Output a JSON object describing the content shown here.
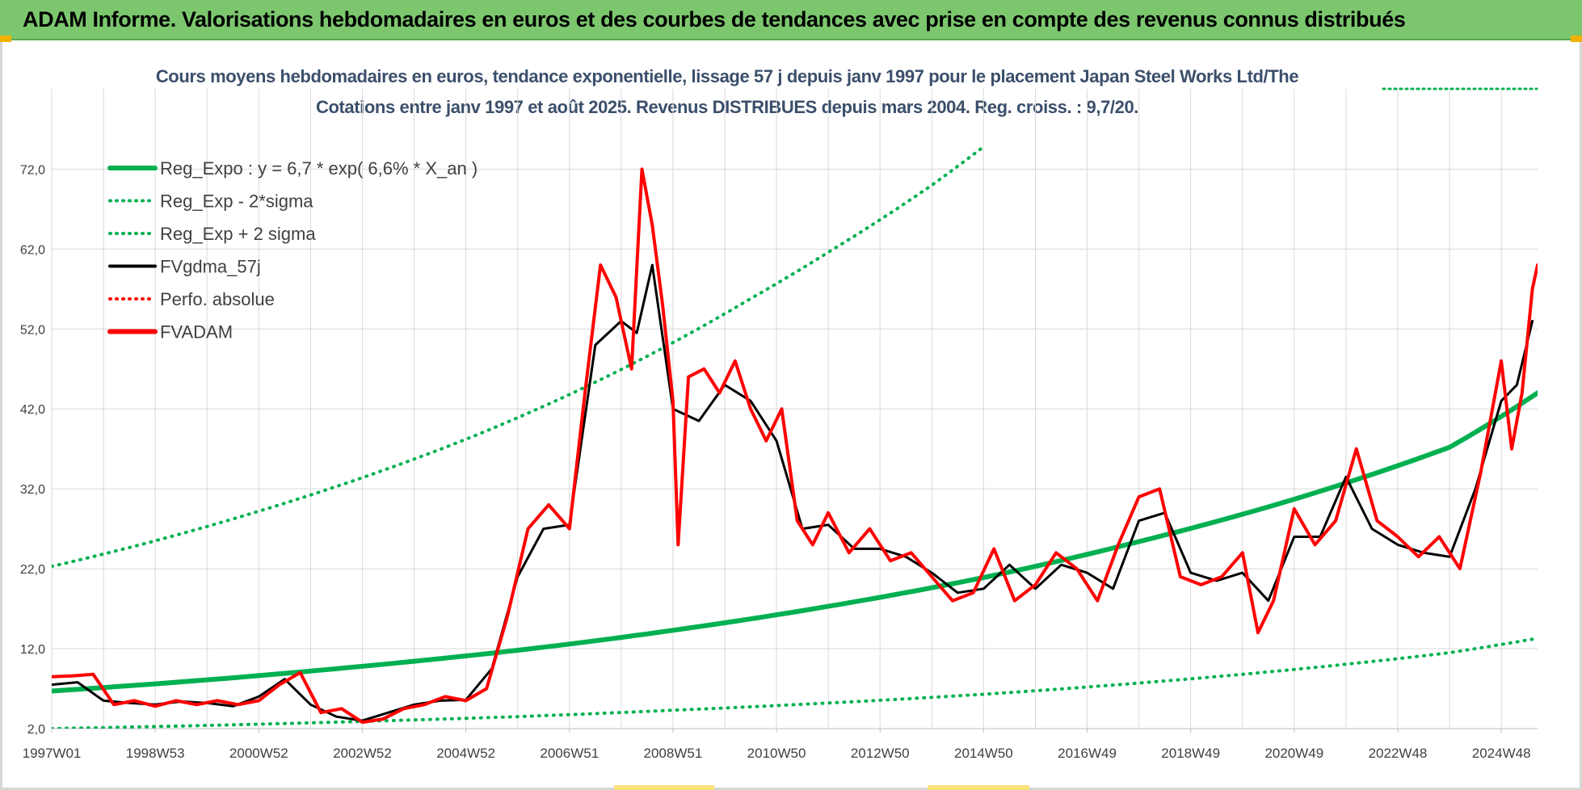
{
  "header": {
    "title": "ADAM Informe. Valorisations hebdomadaires en euros et des courbes de tendances avec prise en compte des revenus connus distribués"
  },
  "colors": {
    "header_bg": "#7cc76e",
    "trend": "#00b050",
    "fvgdma": "#000000",
    "fvadam": "#ff0000",
    "grid": "#d9d9d9",
    "title_text": "#3b4f6b"
  },
  "chart_data": {
    "type": "line",
    "title": "Cours moyens hebdomadaires en euros, tendance exponentielle, lissage 57 j depuis janv 1997 pour le placement Japan Steel Works Ltd/The",
    "subtitle": "Cotations entre janv 1997 et août 2025. Revenus DISTRIBUES depuis mars 2004. Reg. croiss. : 9,7/20.",
    "xlabel": "",
    "ylabel": "",
    "ylim": [
      2,
      78
    ],
    "xlim": [
      1997.0,
      2025.7
    ],
    "yticks": [
      2,
      12,
      22,
      32,
      42,
      52,
      62,
      72
    ],
    "ytick_labels": [
      "2,0",
      "12,0",
      "22,0",
      "32,0",
      "42,0",
      "52,0",
      "62,0",
      "72,0"
    ],
    "xticks": [
      {
        "label": "1997W01",
        "x": 1997.0
      },
      {
        "label": "1998W53",
        "x": 1999.0
      },
      {
        "label": "2000W52",
        "x": 2001.0
      },
      {
        "label": "2002W52",
        "x": 2003.0
      },
      {
        "label": "2004W52",
        "x": 2005.0
      },
      {
        "label": "2006W51",
        "x": 2007.0
      },
      {
        "label": "2008W51",
        "x": 2009.0
      },
      {
        "label": "2010W50",
        "x": 2011.0
      },
      {
        "label": "2012W50",
        "x": 2013.0
      },
      {
        "label": "2014W50",
        "x": 2015.0
      },
      {
        "label": "2016W49",
        "x": 2017.0
      },
      {
        "label": "2018W49",
        "x": 2019.0
      },
      {
        "label": "2020W49",
        "x": 2021.0
      },
      {
        "label": "2022W48",
        "x": 2023.0
      },
      {
        "label": "2024W48",
        "x": 2025.0
      }
    ],
    "grid": true,
    "legend_position": "top-left",
    "legend": [
      {
        "label": "Reg_Expo : y = 6,7 * exp( 6,6% *  X_an )",
        "color": "#00b050",
        "style": "solid-thick"
      },
      {
        "label": "Reg_Exp - 2*sigma",
        "color": "#00b050",
        "style": "dotted"
      },
      {
        "label": "Reg_Exp + 2 sigma",
        "color": "#00b050",
        "style": "dotted"
      },
      {
        "label": "FVgdma_57j",
        "color": "#000000",
        "style": "solid"
      },
      {
        "label": "Perfo. absolue",
        "color": "#ff0000",
        "style": "dotted"
      },
      {
        "label": "FVADAM",
        "color": "#ff0000",
        "style": "solid-thick"
      }
    ],
    "series": [
      {
        "name": "Reg_Expo : y = 6,7 * exp( 6,6% *  X_an )",
        "x": [
          1997.0,
          2000.0,
          2003.0,
          2006.0,
          2009.0,
          2012.0,
          2015.0,
          2018.0,
          2021.0,
          2024.0,
          2025.7
        ],
        "values": [
          6.7,
          8.1,
          9.8,
          11.8,
          14.3,
          17.3,
          20.9,
          25.4,
          30.7,
          37.2,
          44.0
        ]
      },
      {
        "name": "Reg_Exp - 2*sigma",
        "x": [
          1997.0,
          2000.0,
          2003.0,
          2006.0,
          2009.0,
          2012.0,
          2015.0,
          2018.0,
          2021.0,
          2024.0,
          2025.7
        ],
        "values": [
          2.0,
          2.4,
          2.9,
          3.5,
          4.3,
          5.2,
          6.3,
          7.7,
          9.4,
          11.5,
          13.3
        ]
      },
      {
        "name": "Reg_Exp + 2 sigma",
        "x": [
          1997.0,
          1999.0,
          2001.0,
          2003.0,
          2005.0,
          2007.0,
          2009.0,
          2010.5,
          2012.0,
          2014.0,
          2015.0
        ],
        "values": [
          22.3,
          25.5,
          29.2,
          33.4,
          38.2,
          43.8,
          50.3,
          55.8,
          61.6,
          70.0,
          74.8
        ]
      },
      {
        "name": "FVgdma_57j",
        "x": [
          1997.0,
          1997.5,
          1998.0,
          1998.5,
          1999.0,
          1999.5,
          2000.0,
          2000.5,
          2001.0,
          2001.5,
          2002.0,
          2002.5,
          2003.0,
          2003.5,
          2004.0,
          2004.5,
          2005.0,
          2005.5,
          2006.0,
          2006.5,
          2007.0,
          2007.5,
          2008.0,
          2008.3,
          2008.6,
          2009.0,
          2009.5,
          2010.0,
          2010.5,
          2011.0,
          2011.5,
          2012.0,
          2012.5,
          2013.0,
          2013.5,
          2014.0,
          2014.5,
          2015.0,
          2015.5,
          2016.0,
          2016.5,
          2017.0,
          2017.5,
          2018.0,
          2018.5,
          2019.0,
          2019.5,
          2020.0,
          2020.5,
          2021.0,
          2021.5,
          2022.0,
          2022.5,
          2023.0,
          2023.5,
          2024.0,
          2024.5,
          2025.0,
          2025.3,
          2025.6
        ],
        "values": [
          7.5,
          7.8,
          5.5,
          5.2,
          5.0,
          5.4,
          5.2,
          4.8,
          6.0,
          8.2,
          5.0,
          3.5,
          3.0,
          4.0,
          5.0,
          5.5,
          5.6,
          9.5,
          21.0,
          27.0,
          27.5,
          50.0,
          53.0,
          51.5,
          60.0,
          42.0,
          40.5,
          45.0,
          43.0,
          38.0,
          27.0,
          27.5,
          24.5,
          24.5,
          23.5,
          21.5,
          19.0,
          19.5,
          22.5,
          19.5,
          22.5,
          21.5,
          19.5,
          28.0,
          29.0,
          21.5,
          20.5,
          21.5,
          18.0,
          26.0,
          26.0,
          33.5,
          27.0,
          25.0,
          24.0,
          23.5,
          32.0,
          43.0,
          45.0,
          53.0
        ]
      },
      {
        "name": "FVADAM",
        "x": [
          1997.0,
          1997.4,
          1997.8,
          1998.2,
          1998.6,
          1999.0,
          1999.4,
          1999.8,
          2000.2,
          2000.6,
          2001.0,
          2001.4,
          2001.8,
          2002.2,
          2002.6,
          2003.0,
          2003.4,
          2003.8,
          2004.2,
          2004.6,
          2005.0,
          2005.4,
          2005.8,
          2006.2,
          2006.6,
          2007.0,
          2007.3,
          2007.6,
          2007.9,
          2008.2,
          2008.4,
          2008.6,
          2008.8,
          2009.0,
          2009.1,
          2009.3,
          2009.6,
          2009.9,
          2010.2,
          2010.5,
          2010.8,
          2011.1,
          2011.4,
          2011.7,
          2012.0,
          2012.4,
          2012.8,
          2013.2,
          2013.6,
          2014.0,
          2014.4,
          2014.8,
          2015.2,
          2015.6,
          2016.0,
          2016.4,
          2016.8,
          2017.2,
          2017.6,
          2018.0,
          2018.4,
          2018.8,
          2019.2,
          2019.6,
          2020.0,
          2020.3,
          2020.6,
          2021.0,
          2021.4,
          2021.8,
          2022.2,
          2022.6,
          2023.0,
          2023.4,
          2023.8,
          2024.2,
          2024.6,
          2025.0,
          2025.2,
          2025.4,
          2025.6,
          2025.7
        ],
        "values": [
          8.5,
          8.6,
          8.8,
          5.0,
          5.5,
          4.8,
          5.5,
          5.0,
          5.5,
          5.0,
          5.5,
          7.5,
          9.0,
          4.0,
          4.5,
          2.8,
          3.2,
          4.5,
          5.0,
          6.0,
          5.5,
          7.0,
          16.0,
          27.0,
          30.0,
          27.0,
          44.0,
          60.0,
          56.0,
          47.0,
          72.0,
          65.0,
          55.0,
          43.0,
          25.0,
          46.0,
          47.0,
          44.0,
          48.0,
          42.0,
          38.0,
          42.0,
          28.0,
          25.0,
          29.0,
          24.0,
          27.0,
          23.0,
          24.0,
          21.0,
          18.0,
          19.0,
          24.5,
          18.0,
          20.0,
          24.0,
          22.0,
          18.0,
          25.0,
          31.0,
          32.0,
          21.0,
          20.0,
          21.0,
          24.0,
          14.0,
          18.0,
          29.5,
          25.0,
          28.0,
          37.0,
          28.0,
          26.0,
          23.5,
          26.0,
          22.0,
          34.0,
          48.0,
          37.0,
          44.0,
          57.0,
          60.0
        ]
      }
    ]
  }
}
